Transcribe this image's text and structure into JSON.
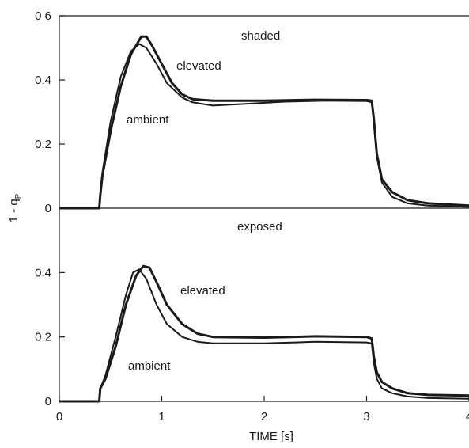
{
  "chart_data": [
    {
      "type": "line",
      "panel": "top",
      "annotation": "shaded",
      "x_range": [
        0,
        4
      ],
      "ylim": [
        0,
        0.6
      ],
      "y_ticks": [
        "0",
        "0.2",
        "0.4",
        "0 6"
      ],
      "grid": false,
      "series": [
        {
          "name": "elevated",
          "points": [
            [
              0,
              0
            ],
            [
              0.39,
              0
            ],
            [
              0.4,
              0.04
            ],
            [
              0.42,
              0.1
            ],
            [
              0.5,
              0.24
            ],
            [
              0.6,
              0.38
            ],
            [
              0.7,
              0.48
            ],
            [
              0.8,
              0.535
            ],
            [
              0.85,
              0.535
            ],
            [
              0.9,
              0.51
            ],
            [
              1.0,
              0.45
            ],
            [
              1.1,
              0.39
            ],
            [
              1.2,
              0.355
            ],
            [
              1.3,
              0.34
            ],
            [
              1.5,
              0.335
            ],
            [
              2.0,
              0.335
            ],
            [
              2.5,
              0.338
            ],
            [
              3.0,
              0.337
            ],
            [
              3.05,
              0.335
            ],
            [
              3.07,
              0.28
            ],
            [
              3.1,
              0.17
            ],
            [
              3.15,
              0.09
            ],
            [
              3.25,
              0.05
            ],
            [
              3.4,
              0.025
            ],
            [
              3.6,
              0.015
            ],
            [
              4.0,
              0.008
            ]
          ]
        },
        {
          "name": "ambient",
          "points": [
            [
              0,
              0
            ],
            [
              0.39,
              0
            ],
            [
              0.4,
              0.04
            ],
            [
              0.42,
              0.11
            ],
            [
              0.5,
              0.27
            ],
            [
              0.6,
              0.41
            ],
            [
              0.7,
              0.49
            ],
            [
              0.78,
              0.512
            ],
            [
              0.85,
              0.5
            ],
            [
              0.95,
              0.45
            ],
            [
              1.05,
              0.39
            ],
            [
              1.2,
              0.345
            ],
            [
              1.3,
              0.33
            ],
            [
              1.5,
              0.32
            ],
            [
              1.8,
              0.325
            ],
            [
              2.2,
              0.332
            ],
            [
              2.6,
              0.335
            ],
            [
              3.0,
              0.334
            ],
            [
              3.05,
              0.33
            ],
            [
              3.07,
              0.27
            ],
            [
              3.1,
              0.16
            ],
            [
              3.15,
              0.08
            ],
            [
              3.25,
              0.035
            ],
            [
              3.4,
              0.015
            ],
            [
              3.6,
              0.008
            ],
            [
              4.0,
              0.004
            ]
          ]
        }
      ]
    },
    {
      "type": "line",
      "panel": "bottom",
      "annotation": "exposed",
      "x_range": [
        0,
        4
      ],
      "ylim": [
        0,
        0.6
      ],
      "y_ticks": [
        "0",
        "0.2",
        "0.4"
      ],
      "xlabel": "TIME [s]",
      "x_ticks": [
        "0",
        "1",
        "2",
        "3",
        "4"
      ],
      "grid": false,
      "series": [
        {
          "name": "elevated",
          "points": [
            [
              0,
              0
            ],
            [
              0.39,
              0
            ],
            [
              0.4,
              0.04
            ],
            [
              0.45,
              0.07
            ],
            [
              0.55,
              0.17
            ],
            [
              0.65,
              0.3
            ],
            [
              0.75,
              0.39
            ],
            [
              0.82,
              0.42
            ],
            [
              0.88,
              0.415
            ],
            [
              0.95,
              0.37
            ],
            [
              1.05,
              0.3
            ],
            [
              1.2,
              0.24
            ],
            [
              1.35,
              0.21
            ],
            [
              1.5,
              0.2
            ],
            [
              2.0,
              0.198
            ],
            [
              2.5,
              0.202
            ],
            [
              3.0,
              0.2
            ],
            [
              3.05,
              0.195
            ],
            [
              3.07,
              0.14
            ],
            [
              3.1,
              0.09
            ],
            [
              3.15,
              0.06
            ],
            [
              3.25,
              0.04
            ],
            [
              3.4,
              0.025
            ],
            [
              3.6,
              0.02
            ],
            [
              4.0,
              0.018
            ]
          ]
        },
        {
          "name": "ambient",
          "points": [
            [
              0,
              0
            ],
            [
              0.39,
              0
            ],
            [
              0.4,
              0.04
            ],
            [
              0.45,
              0.08
            ],
            [
              0.55,
              0.2
            ],
            [
              0.65,
              0.33
            ],
            [
              0.72,
              0.4
            ],
            [
              0.78,
              0.41
            ],
            [
              0.85,
              0.38
            ],
            [
              0.95,
              0.3
            ],
            [
              1.05,
              0.24
            ],
            [
              1.2,
              0.2
            ],
            [
              1.35,
              0.185
            ],
            [
              1.5,
              0.18
            ],
            [
              2.0,
              0.18
            ],
            [
              2.5,
              0.185
            ],
            [
              3.0,
              0.183
            ],
            [
              3.05,
              0.18
            ],
            [
              3.07,
              0.12
            ],
            [
              3.1,
              0.07
            ],
            [
              3.15,
              0.04
            ],
            [
              3.25,
              0.025
            ],
            [
              3.4,
              0.015
            ],
            [
              3.6,
              0.01
            ],
            [
              4.0,
              0.008
            ]
          ]
        }
      ]
    }
  ],
  "shared": {
    "ylabel": "1 - q",
    "ylabel_subscript": "P",
    "line_color": "#1a1a1a",
    "axis_color": "#1a1a1a",
    "background": "#ffffff"
  }
}
